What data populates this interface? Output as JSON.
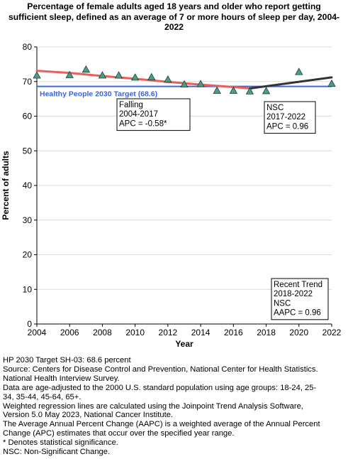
{
  "title_lines": [
    "Percentage of female adults aged 18 years and older who report getting",
    "sufficient sleep, defined as an average of 7 or more hours of sleep per day, 2004-",
    "2022"
  ],
  "chart_data": {
    "type": "scatter",
    "xlabel": "Year",
    "ylabel": "Percent of adults",
    "xlim": [
      2004,
      2022
    ],
    "ylim": [
      0,
      80
    ],
    "xticks": [
      2004,
      2006,
      2008,
      2010,
      2012,
      2014,
      2016,
      2018,
      2020,
      2022
    ],
    "yticks": [
      0,
      10,
      20,
      30,
      40,
      50,
      60,
      70,
      80
    ],
    "grid": "horizontal",
    "observed": {
      "x": [
        2004,
        2006,
        2007,
        2008,
        2009,
        2010,
        2011,
        2012,
        2013,
        2014,
        2015,
        2016,
        2017,
        2018,
        2020,
        2022
      ],
      "y": [
        71.8,
        71.9,
        73.5,
        71.8,
        71.8,
        71.2,
        71.3,
        70.6,
        69.2,
        69.3,
        67.4,
        67.4,
        67.2,
        67.3,
        72.8,
        69.4
      ],
      "color": "#4d9d82"
    },
    "trend_segments": [
      {
        "x": [
          2004,
          2006,
          2008,
          2010,
          2012,
          2014,
          2016,
          2017
        ],
        "y": [
          73.1,
          72.5,
          71.6,
          70.8,
          69.9,
          69.1,
          68.4,
          68.0
        ],
        "color": "#e8605c"
      },
      {
        "x": [
          2017,
          2022
        ],
        "y": [
          68.0,
          71.2
        ],
        "color": "#333333"
      }
    ],
    "target": {
      "value": 68.6,
      "label": "Healthy People 2030 Target (68.6)",
      "color": "#3c64e0"
    },
    "annotations": [
      {
        "id": "falling",
        "lines": [
          "Falling",
          "2004-2017",
          "APC = -0.58*"
        ]
      },
      {
        "id": "nsc",
        "lines": [
          "NSC",
          "2017-2022",
          "APC =  0.96"
        ]
      },
      {
        "id": "recent",
        "lines": [
          "Recent Trend",
          "2018-2022",
          "NSC",
          "AAPC =  0.96"
        ]
      }
    ]
  },
  "notes": [
    "HP 2030 Target SH-03: 68.6 percent",
    "Source: Centers for Disease Control and Prevention, National Center for Health Statistics.",
    "National Health Interview Survey.",
    "Data are age-adjusted to the 2000 U.S. standard population using age groups: 18-24, 25-",
    "34, 35-44, 45-64, 65+.",
    "Weighted regression lines are calculated using the Joinpoint Trend Analysis Software,",
    "Version 5.0 May 2023, National Cancer Institute.",
    "The Average Annual Percent Change (AAPC) is a weighted average of the Annual Percent",
    "Change (APC) estimates that occur over the specified year range.",
    "* Denotes statistical significance.",
    "NSC: Non-Significant Change."
  ]
}
